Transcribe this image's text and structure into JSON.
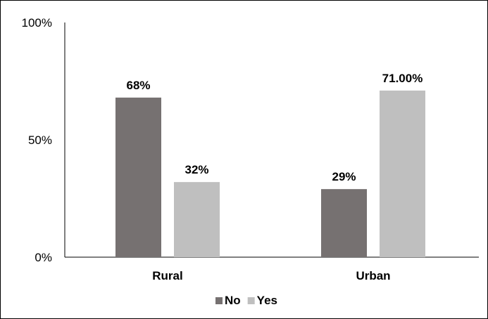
{
  "chart_data": {
    "type": "bar",
    "categories": [
      "Rural",
      "Urban"
    ],
    "series": [
      {
        "name": "No",
        "values": [
          68,
          29
        ],
        "labels": [
          "68%",
          "29%"
        ],
        "color": "#767171"
      },
      {
        "name": "Yes",
        "values": [
          32,
          71
        ],
        "labels": [
          "32%",
          "71.00%"
        ],
        "color": "#bfbfbf"
      }
    ],
    "y_ticks": [
      {
        "value": 0,
        "label": "0%"
      },
      {
        "value": 50,
        "label": "50%"
      },
      {
        "value": 100,
        "label": "100%"
      }
    ],
    "ylim": [
      0,
      100
    ],
    "grid": false,
    "legend_position": "bottom",
    "axis_color": "#000000"
  }
}
